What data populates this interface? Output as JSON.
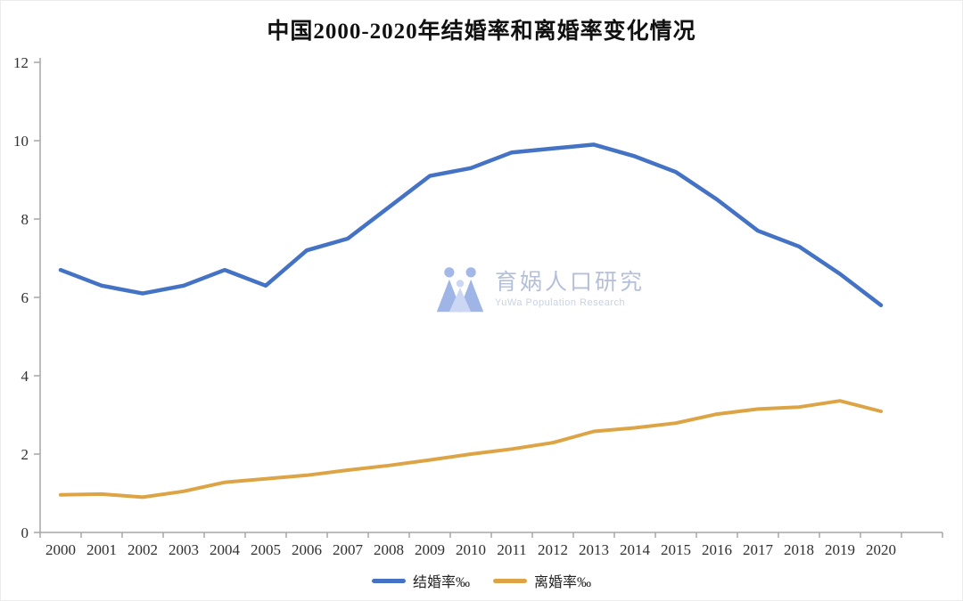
{
  "watermark": {
    "logo_icon": "yuwa-logo",
    "name_cn": "育娲人口研究",
    "name_en": "YuWa Population Research"
  },
  "chart_data": {
    "type": "line",
    "title": "中国2000-2020年结婚率和离婚率变化情况",
    "categories": [
      "2000",
      "2001",
      "2002",
      "2003",
      "2004",
      "2005",
      "2006",
      "2007",
      "2008",
      "2009",
      "2010",
      "2011",
      "2012",
      "2013",
      "2014",
      "2015",
      "2016",
      "2017",
      "2018",
      "2019",
      "2020"
    ],
    "series": [
      {
        "name": "结婚率‰",
        "color": "#4472c4",
        "values": [
          6.7,
          6.3,
          6.1,
          6.3,
          6.7,
          6.3,
          7.2,
          7.5,
          8.3,
          9.1,
          9.3,
          9.7,
          9.8,
          9.9,
          9.6,
          9.2,
          8.5,
          7.7,
          7.3,
          6.6,
          5.8
        ]
      },
      {
        "name": "离婚率‰",
        "color": "#dda445",
        "values": [
          0.96,
          0.98,
          0.9,
          1.05,
          1.28,
          1.37,
          1.46,
          1.59,
          1.71,
          1.85,
          2.0,
          2.13,
          2.29,
          2.58,
          2.67,
          2.79,
          3.02,
          3.15,
          3.2,
          3.36,
          3.09
        ]
      }
    ],
    "xlabel": "",
    "ylabel": "",
    "ylim": [
      0,
      12
    ],
    "yticks": [
      0,
      2,
      4,
      6,
      8,
      10,
      12
    ],
    "grid": false,
    "legend_position": "bottom",
    "axis_color": "#a6a6a6"
  }
}
